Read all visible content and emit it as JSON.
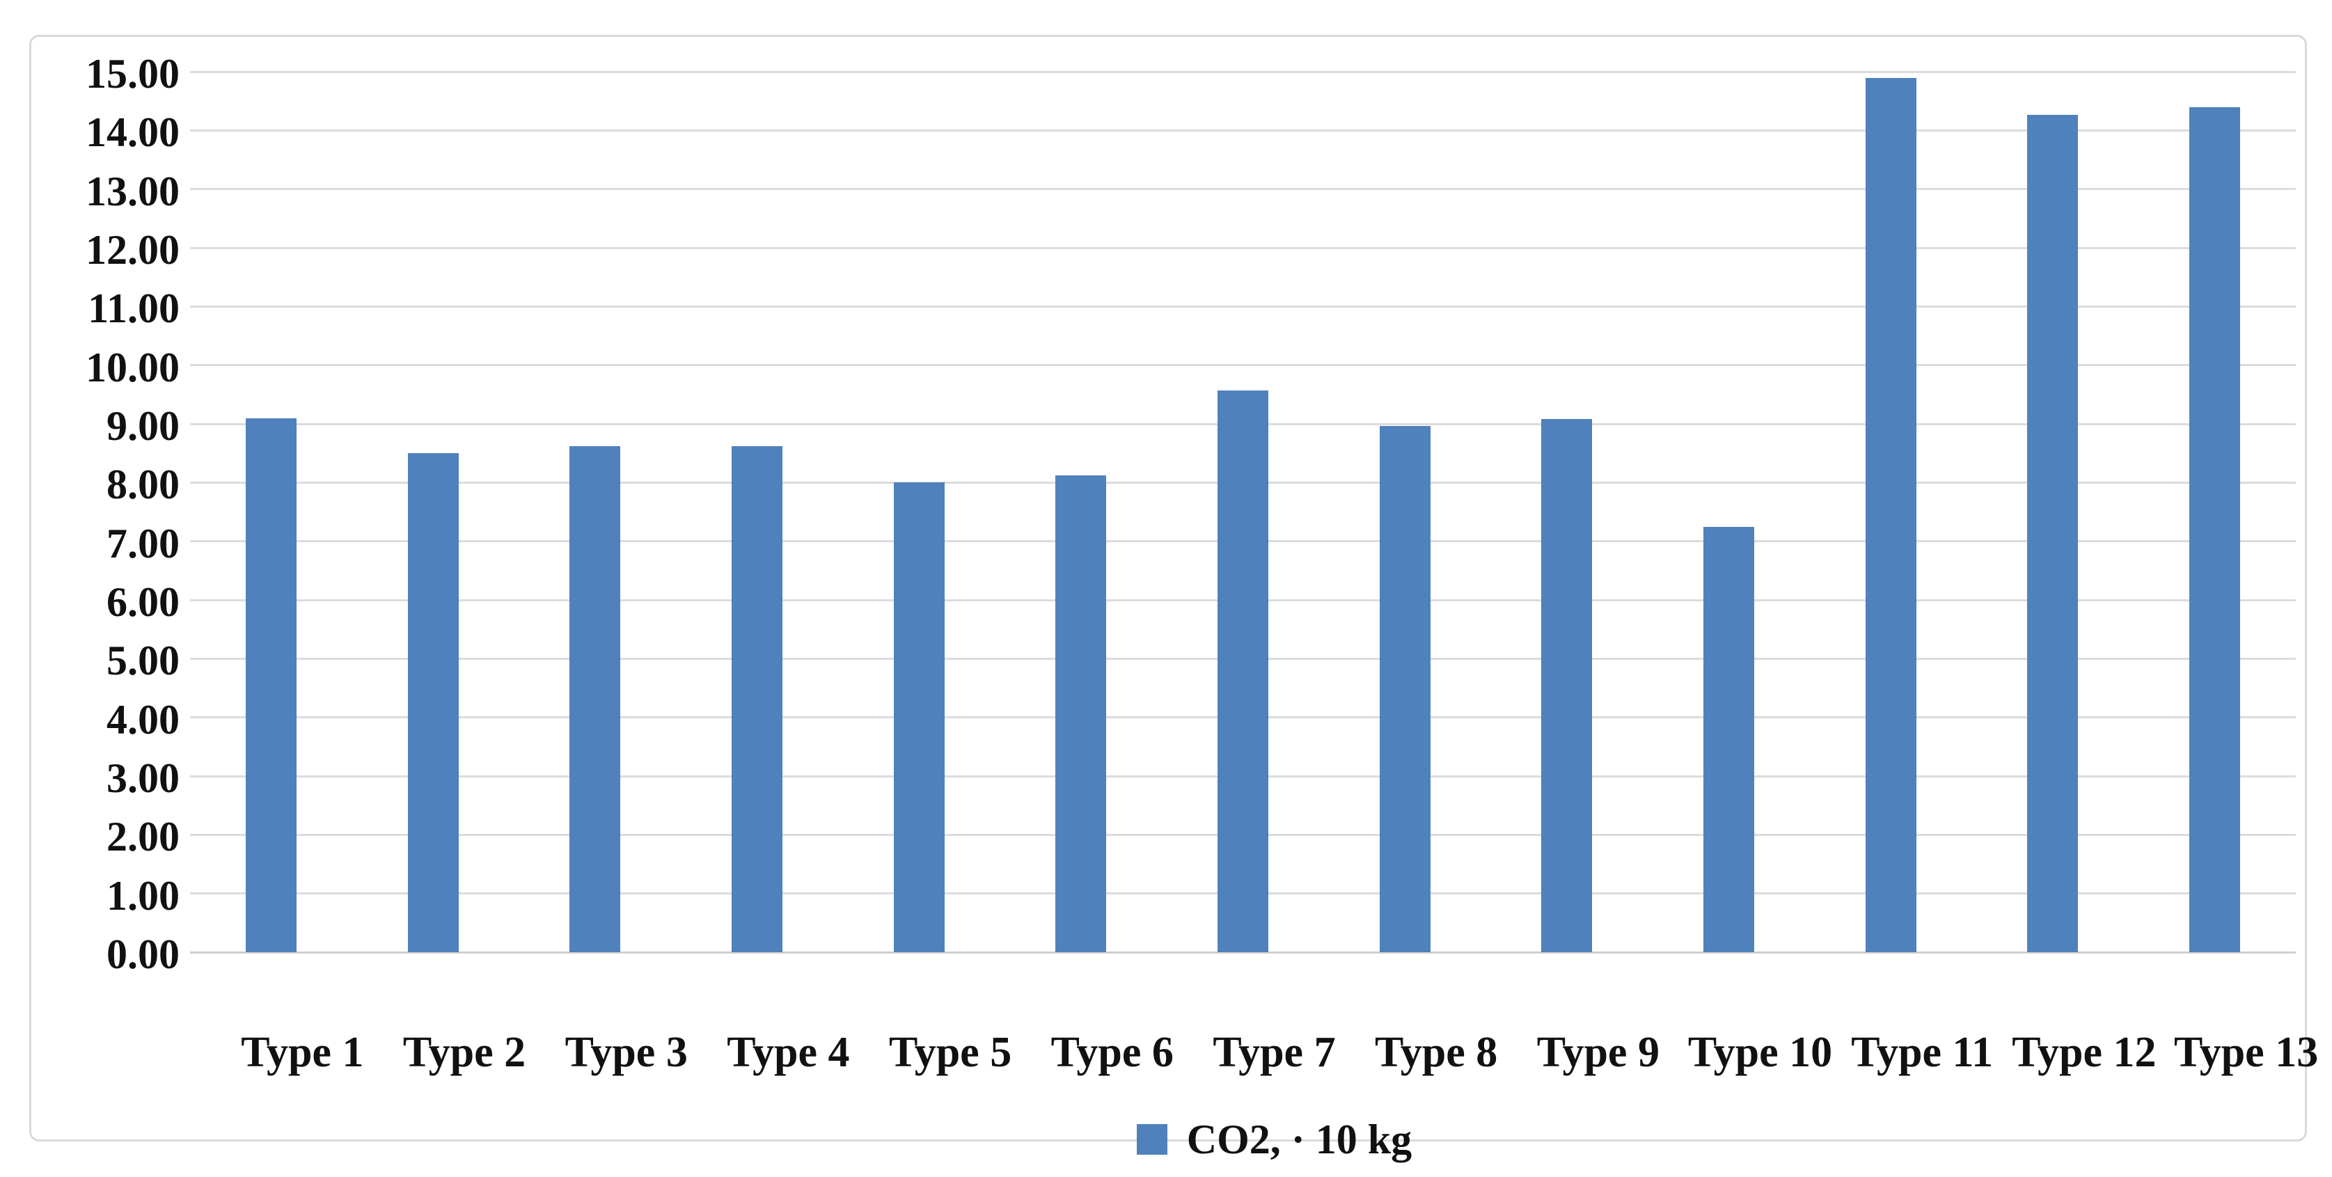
{
  "chart_data": {
    "type": "bar",
    "title": "",
    "categories": [
      "Type 1",
      "Type 2",
      "Type 3",
      "Type 4",
      "Type 5",
      "Type 6",
      "Type 7",
      "Type 8",
      "Type 9",
      "Type 10",
      "Type 11",
      "Type 12",
      "Type 13"
    ],
    "series": [
      {
        "name": "CO2, · 10 kg",
        "values": [
          9.1,
          8.5,
          8.62,
          8.62,
          8.0,
          8.12,
          9.57,
          8.96,
          9.08,
          7.24,
          14.89,
          14.27,
          14.39
        ]
      }
    ],
    "xlabel": "",
    "ylabel": "",
    "ylim": [
      0,
      15
    ],
    "y_tick_step": 1,
    "y_tick_labels": [
      "0.00",
      "1.00",
      "2.00",
      "3.00",
      "4.00",
      "5.00",
      "6.00",
      "7.00",
      "8.00",
      "9.00",
      "10.00",
      "11.00",
      "12.00",
      "13.00",
      "14.00",
      "15.00"
    ],
    "grid": "horizontal",
    "legend_position": "bottom-center",
    "colors": {
      "bar_fill": "#4F81BD",
      "gridline": "#DCDCDC",
      "axis_line": "#CFCFCF",
      "frame_border": "#D9D9D9",
      "text": "#111111",
      "background": "#FFFFFF"
    }
  },
  "legend": {
    "marker": "square-icon",
    "label": "CO2, · 10 kg"
  }
}
